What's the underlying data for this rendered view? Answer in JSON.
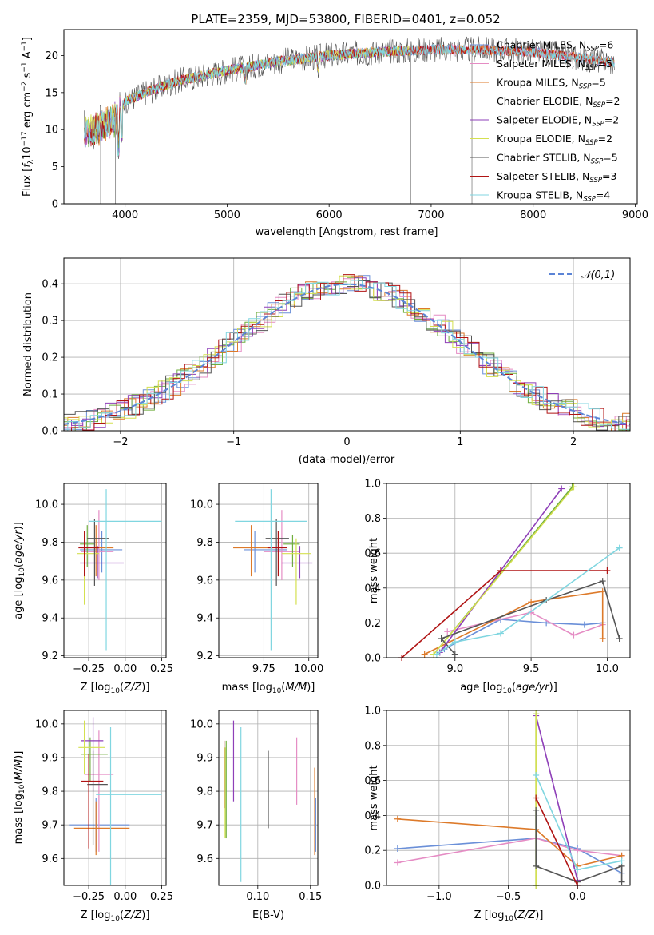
{
  "figure": {
    "title": "PLATE=2359, MJD=53800, FIBERID=0401, z=0.052"
  },
  "colors": {
    "Chabrier MILES": "#6a8fd8",
    "Salpeter MILES": "#e58cc4",
    "Kroupa MILES": "#dd7a2a",
    "Chabrier ELODIE": "#6fae3e",
    "Salpeter ELODIE": "#8e3fb8",
    "Kroupa ELODIE": "#d4e050",
    "Chabrier STELIB": "#555555",
    "Salpeter STELIB": "#b01414",
    "Kroupa STELIB": "#80d6e0"
  },
  "chart_data": [
    {
      "id": "spectrum",
      "type": "line",
      "xlabel": "wavelength [Angstrom, rest frame]",
      "ylabel": "Flux [f_λ 10^-17 erg cm^-2 s^-1 A^-1]",
      "xlim": [
        3400,
        9020
      ],
      "ylim": [
        0,
        23.5
      ],
      "xticks": [
        4000,
        5000,
        6000,
        7000,
        8000,
        9000
      ],
      "yticks": [
        0,
        5,
        10,
        15,
        20
      ],
      "legend_position": "upper-right",
      "legend": [
        "Chabrier MILES, N_SSP=6",
        "Salpeter MILES, N_SSP=5",
        "Kroupa MILES, N_SSP=5",
        "Chabrier ELODIE, N_SSP=2",
        "Salpeter ELODIE, N_SSP=2",
        "Kroupa ELODIE, N_SSP=2",
        "Chabrier STELIB, N_SSP=5",
        "Salpeter STELIB, N_SSP=3",
        "Kroupa STELIB, N_SSP=4"
      ],
      "continuum": {
        "wavelength": [
          3600,
          3750,
          3900,
          4000,
          4200,
          4500,
          5000,
          5500,
          6000,
          6500,
          7000,
          7500,
          8000,
          8500,
          8800
        ],
        "flux": [
          9.5,
          10.5,
          11.5,
          13.8,
          15.0,
          16.5,
          18.0,
          19.2,
          20.0,
          20.5,
          20.8,
          20.8,
          20.5,
          19.6,
          19.0
        ]
      },
      "dips": [
        {
          "wavelength": 3760,
          "flux": 0
        },
        {
          "wavelength": 3905,
          "flux": 0
        },
        {
          "wavelength": 6800,
          "flux": 0
        },
        {
          "wavelength": 7400,
          "flux": 0
        }
      ]
    },
    {
      "id": "residuals",
      "type": "line",
      "xlabel": "(data-model)/error",
      "ylabel": "Normed distribution",
      "xlim": [
        -2.5,
        2.5
      ],
      "ylim": [
        0,
        0.47
      ],
      "xticks": [
        -2,
        -1,
        0,
        1,
        2
      ],
      "yticks": [
        0.0,
        0.1,
        0.2,
        0.3,
        0.4
      ],
      "grid": true,
      "legend": "𝒩(0,1)",
      "legend_position": "upper-right",
      "reference": "normal(0,1) pdf, dashed"
    },
    {
      "id": "age-vs-Z",
      "type": "scatter",
      "xlabel": "Z [log10(Z/Z⊙)]",
      "ylabel": "age [log10(age/yr)]",
      "xlim": [
        -0.42,
        0.28
      ],
      "ylim": [
        9.19,
        10.11
      ],
      "xticks": [
        -0.25,
        0.0,
        0.25
      ],
      "yticks": [
        9.2,
        9.4,
        9.6,
        9.8,
        10.0
      ],
      "grid": true,
      "points": [
        {
          "series": "Chabrier MILES",
          "x": -0.16,
          "y": 9.76,
          "xerr": [
            0.15,
            0.14
          ],
          "yerr": [
            0.12,
            0.1
          ]
        },
        {
          "series": "Salpeter MILES",
          "x": -0.18,
          "y": 9.75,
          "xerr": [
            0.12,
            0.1
          ],
          "yerr": [
            0.15,
            0.22
          ]
        },
        {
          "series": "Kroupa MILES",
          "x": -0.2,
          "y": 9.77,
          "xerr": [
            0.1,
            0.12
          ],
          "yerr": [
            0.15,
            0.12
          ]
        },
        {
          "series": "Chabrier ELODIE",
          "x": -0.26,
          "y": 9.79,
          "xerr": [
            0.05,
            0.05
          ],
          "yerr": [
            0.12,
            0.1
          ]
        },
        {
          "series": "Salpeter ELODIE",
          "x": -0.19,
          "y": 9.69,
          "xerr": [
            0.12,
            0.18
          ],
          "yerr": [
            0.08,
            0.09
          ]
        },
        {
          "series": "Kroupa ELODIE",
          "x": -0.28,
          "y": 9.74,
          "xerr": [
            0.05,
            0.1
          ],
          "yerr": [
            0.27,
            0.08
          ]
        },
        {
          "series": "Chabrier STELIB",
          "x": -0.21,
          "y": 9.82,
          "xerr": [
            0.05,
            0.1
          ],
          "yerr": [
            0.25,
            0.1
          ]
        },
        {
          "series": "Salpeter STELIB",
          "x": -0.28,
          "y": 9.77,
          "xerr": [
            0.04,
            0.1
          ],
          "yerr": [
            0.15,
            0.09
          ]
        },
        {
          "series": "Kroupa STELIB",
          "x": -0.13,
          "y": 9.91,
          "xerr": [
            0.12,
            0.38
          ],
          "yerr": [
            0.68,
            0.17
          ]
        }
      ]
    },
    {
      "id": "age-vs-mass",
      "type": "scatter",
      "xlabel": "mass [log10(M/M⊙)]",
      "ylabel": "",
      "xlim": [
        9.5,
        10.05
      ],
      "ylim": [
        9.19,
        10.11
      ],
      "xticks": [
        9.75,
        10.0
      ],
      "yticks": [
        9.2,
        9.4,
        9.6,
        9.8,
        10.0
      ],
      "grid": true,
      "points": [
        {
          "series": "Chabrier MILES",
          "x": 9.7,
          "y": 9.76,
          "xerr": [
            0.06,
            0.18
          ],
          "yerr": [
            0.12,
            0.1
          ]
        },
        {
          "series": "Salpeter MILES",
          "x": 9.85,
          "y": 9.75,
          "xerr": [
            0.1,
            0.1
          ],
          "yerr": [
            0.15,
            0.22
          ]
        },
        {
          "series": "Kroupa MILES",
          "x": 9.68,
          "y": 9.77,
          "xerr": [
            0.1,
            0.12
          ],
          "yerr": [
            0.15,
            0.12
          ]
        },
        {
          "series": "Chabrier ELODIE",
          "x": 9.91,
          "y": 9.79,
          "xerr": [
            0.05,
            0.04
          ],
          "yerr": [
            0.12,
            0.05
          ]
        },
        {
          "series": "Salpeter ELODIE",
          "x": 9.95,
          "y": 9.69,
          "xerr": [
            0.1,
            0.07
          ],
          "yerr": [
            0.08,
            0.09
          ]
        },
        {
          "series": "Kroupa ELODIE",
          "x": 9.93,
          "y": 9.74,
          "xerr": [
            0.08,
            0.08
          ],
          "yerr": [
            0.27,
            0.08
          ]
        },
        {
          "series": "Chabrier STELIB",
          "x": 9.82,
          "y": 9.82,
          "xerr": [
            0.06,
            0.07
          ],
          "yerr": [
            0.25,
            0.1
          ]
        },
        {
          "series": "Salpeter STELIB",
          "x": 9.83,
          "y": 9.77,
          "xerr": [
            0.06,
            0.05
          ],
          "yerr": [
            0.15,
            0.09
          ]
        },
        {
          "series": "Kroupa STELIB",
          "x": 9.79,
          "y": 9.91,
          "xerr": [
            0.2,
            0.2
          ],
          "yerr": [
            0.68,
            0.17
          ]
        }
      ]
    },
    {
      "id": "massweight-vs-age",
      "type": "line",
      "xlabel": "age [log10(age/yr)]",
      "ylabel": "mass weight",
      "xlim": [
        8.55,
        10.15
      ],
      "ylim": [
        0,
        1.0
      ],
      "xticks": [
        9.0,
        9.5,
        10.0
      ],
      "yticks": [
        0.0,
        0.2,
        0.4,
        0.6,
        0.8,
        1.0
      ],
      "grid": true,
      "series": [
        {
          "name": "Chabrier MILES",
          "x": [
            8.93,
            9.3,
            9.6,
            9.85,
            9.97
          ],
          "y": [
            0.05,
            0.22,
            0.2,
            0.19,
            0.2
          ]
        },
        {
          "name": "Salpeter MILES",
          "x": [
            8.95,
            9.5,
            9.78,
            9.97
          ],
          "y": [
            0.15,
            0.26,
            0.13,
            0.19
          ]
        },
        {
          "name": "Kroupa MILES",
          "x": [
            8.8,
            9.5,
            9.97,
            9.97
          ],
          "y": [
            0.02,
            0.32,
            0.38,
            0.11
          ]
        },
        {
          "name": "Chabrier ELODIE",
          "x": [
            8.86,
            9.77
          ],
          "y": [
            0.02,
            0.98
          ]
        },
        {
          "name": "Salpeter ELODIE",
          "x": [
            8.9,
            9.7
          ],
          "y": [
            0.03,
            0.97
          ]
        },
        {
          "name": "Kroupa ELODIE",
          "x": [
            8.86,
            9.78
          ],
          "y": [
            0.02,
            0.98
          ]
        },
        {
          "name": "Chabrier STELIB",
          "x": [
            9.0,
            8.91,
            9.6,
            9.97,
            10.08
          ],
          "y": [
            0.02,
            0.11,
            0.33,
            0.44,
            0.11
          ]
        },
        {
          "name": "Salpeter STELIB",
          "x": [
            8.65,
            9.3,
            10.0
          ],
          "y": [
            0.0,
            0.5,
            0.5
          ]
        },
        {
          "name": "Kroupa STELIB",
          "x": [
            8.88,
            9.0,
            9.3,
            10.08
          ],
          "y": [
            0.02,
            0.09,
            0.14,
            0.63
          ]
        }
      ]
    },
    {
      "id": "mass-vs-Z",
      "type": "scatter",
      "xlabel": "Z [log10(Z/Z⊙)]",
      "ylabel": "mass [log10(M/M⊙)]",
      "xlim": [
        -0.42,
        0.28
      ],
      "ylim": [
        9.52,
        10.04
      ],
      "xticks": [
        -0.25,
        0.0,
        0.25
      ],
      "yticks": [
        9.6,
        9.7,
        9.8,
        9.9,
        10.0
      ],
      "grid": true,
      "points": [
        {
          "series": "Chabrier MILES",
          "x": -0.2,
          "y": 9.7,
          "xerr": [
            0.18,
            0.23
          ],
          "yerr": [
            0.08,
            0.08
          ]
        },
        {
          "series": "Salpeter MILES",
          "x": -0.18,
          "y": 9.85,
          "xerr": [
            0.1,
            0.1
          ],
          "yerr": [
            0.23,
            0.13
          ]
        },
        {
          "series": "Kroupa MILES",
          "x": -0.2,
          "y": 9.69,
          "xerr": [
            0.15,
            0.23
          ],
          "yerr": [
            0.08,
            0.08
          ]
        },
        {
          "series": "Chabrier ELODIE",
          "x": -0.24,
          "y": 9.91,
          "xerr": [
            0.06,
            0.12
          ],
          "yerr": [
            0.08,
            0.05
          ]
        },
        {
          "series": "Salpeter ELODIE",
          "x": -0.22,
          "y": 9.95,
          "xerr": [
            0.08,
            0.07
          ],
          "yerr": [
            0.15,
            0.07
          ]
        },
        {
          "series": "Kroupa ELODIE",
          "x": -0.28,
          "y": 9.93,
          "xerr": [
            0.04,
            0.14
          ],
          "yerr": [
            0.08,
            0.08
          ]
        },
        {
          "series": "Chabrier STELIB",
          "x": -0.22,
          "y": 9.82,
          "xerr": [
            0.04,
            0.1
          ],
          "yerr": [
            0.18,
            0.1
          ]
        },
        {
          "series": "Salpeter STELIB",
          "x": -0.25,
          "y": 9.83,
          "xerr": [
            0.05,
            0.1
          ],
          "yerr": [
            0.2,
            0.08
          ]
        },
        {
          "series": "Kroupa STELIB",
          "x": -0.1,
          "y": 9.79,
          "xerr": [
            0.1,
            0.35
          ],
          "yerr": [
            0.27,
            0.2
          ]
        }
      ]
    },
    {
      "id": "mass-vs-EBV",
      "type": "scatter",
      "xlabel": "E(B-V)",
      "ylabel": "",
      "xlim": [
        0.063,
        0.157
      ],
      "ylim": [
        9.52,
        10.04
      ],
      "xticks": [
        0.1,
        0.15
      ],
      "yticks": [
        9.6,
        9.7,
        9.8,
        9.9,
        10.0
      ],
      "grid": true,
      "points": [
        {
          "series": "Chabrier MILES",
          "x": 0.155,
          "y": 9.7,
          "yerr": [
            0.08,
            0.08
          ]
        },
        {
          "series": "Salpeter MILES",
          "x": 0.137,
          "y": 9.85,
          "yerr": [
            0.09,
            0.11
          ]
        },
        {
          "series": "Kroupa MILES",
          "x": 0.154,
          "y": 9.76,
          "yerr": [
            0.15,
            0.11
          ]
        },
        {
          "series": "Chabrier ELODIE",
          "x": 0.07,
          "y": 9.82,
          "yerr": [
            0.16,
            0.13
          ]
        },
        {
          "series": "Salpeter ELODIE",
          "x": 0.077,
          "y": 9.89,
          "yerr": [
            0.12,
            0.12
          ]
        },
        {
          "series": "Kroupa ELODIE",
          "x": 0.069,
          "y": 9.8,
          "yerr": [
            0.14,
            0.13
          ]
        },
        {
          "series": "Chabrier STELIB",
          "x": 0.11,
          "y": 9.8,
          "yerr": [
            0.11,
            0.12
          ]
        },
        {
          "series": "Salpeter STELIB",
          "x": 0.068,
          "y": 9.85,
          "yerr": [
            0.1,
            0.1
          ]
        },
        {
          "series": "Kroupa STELIB",
          "x": 0.084,
          "y": 9.76,
          "yerr": [
            0.23,
            0.23
          ]
        }
      ]
    },
    {
      "id": "massweight-vs-Z",
      "type": "line",
      "xlabel": "Z [log10(Z/Z⊙)]",
      "ylabel": "mass weight",
      "xlim": [
        -1.38,
        0.38
      ],
      "ylim": [
        0,
        1.0
      ],
      "xticks": [
        -1.0,
        -0.5,
        0.0
      ],
      "yticks": [
        0.0,
        0.2,
        0.4,
        0.6,
        0.8,
        1.0
      ],
      "grid": true,
      "series": [
        {
          "name": "Chabrier MILES",
          "x": [
            -1.3,
            -0.3,
            0.0,
            0.32
          ],
          "y": [
            0.21,
            0.27,
            0.21,
            0.07
          ]
        },
        {
          "name": "Salpeter MILES",
          "x": [
            -1.3,
            -0.3,
            0.0,
            0.32
          ],
          "y": [
            0.13,
            0.27,
            0.2,
            0.17
          ]
        },
        {
          "name": "Kroupa MILES",
          "x": [
            -1.3,
            -0.3,
            0.0,
            0.32
          ],
          "y": [
            0.38,
            0.32,
            0.11,
            0.17
          ]
        },
        {
          "name": "Chabrier ELODIE",
          "x": [
            -0.3,
            -0.3
          ],
          "y": [
            0.0,
            0.98
          ]
        },
        {
          "name": "Salpeter ELODIE",
          "x": [
            -0.3,
            0.0
          ],
          "y": [
            0.97,
            0.03
          ]
        },
        {
          "name": "Kroupa ELODIE",
          "x": [
            -0.3,
            -0.3
          ],
          "y": [
            0.0,
            0.98
          ]
        },
        {
          "name": "Chabrier STELIB",
          "x": [
            -0.3,
            -0.3,
            0.0,
            0.32,
            0.32
          ],
          "y": [
            0.43,
            0.11,
            0.02,
            0.11,
            0.02
          ]
        },
        {
          "name": "Salpeter STELIB",
          "x": [
            -0.3,
            0.0
          ],
          "y": [
            0.5,
            0.0
          ]
        },
        {
          "name": "Kroupa STELIB",
          "x": [
            -0.3,
            0.0,
            0.32
          ],
          "y": [
            0.63,
            0.09,
            0.14
          ]
        }
      ]
    }
  ]
}
